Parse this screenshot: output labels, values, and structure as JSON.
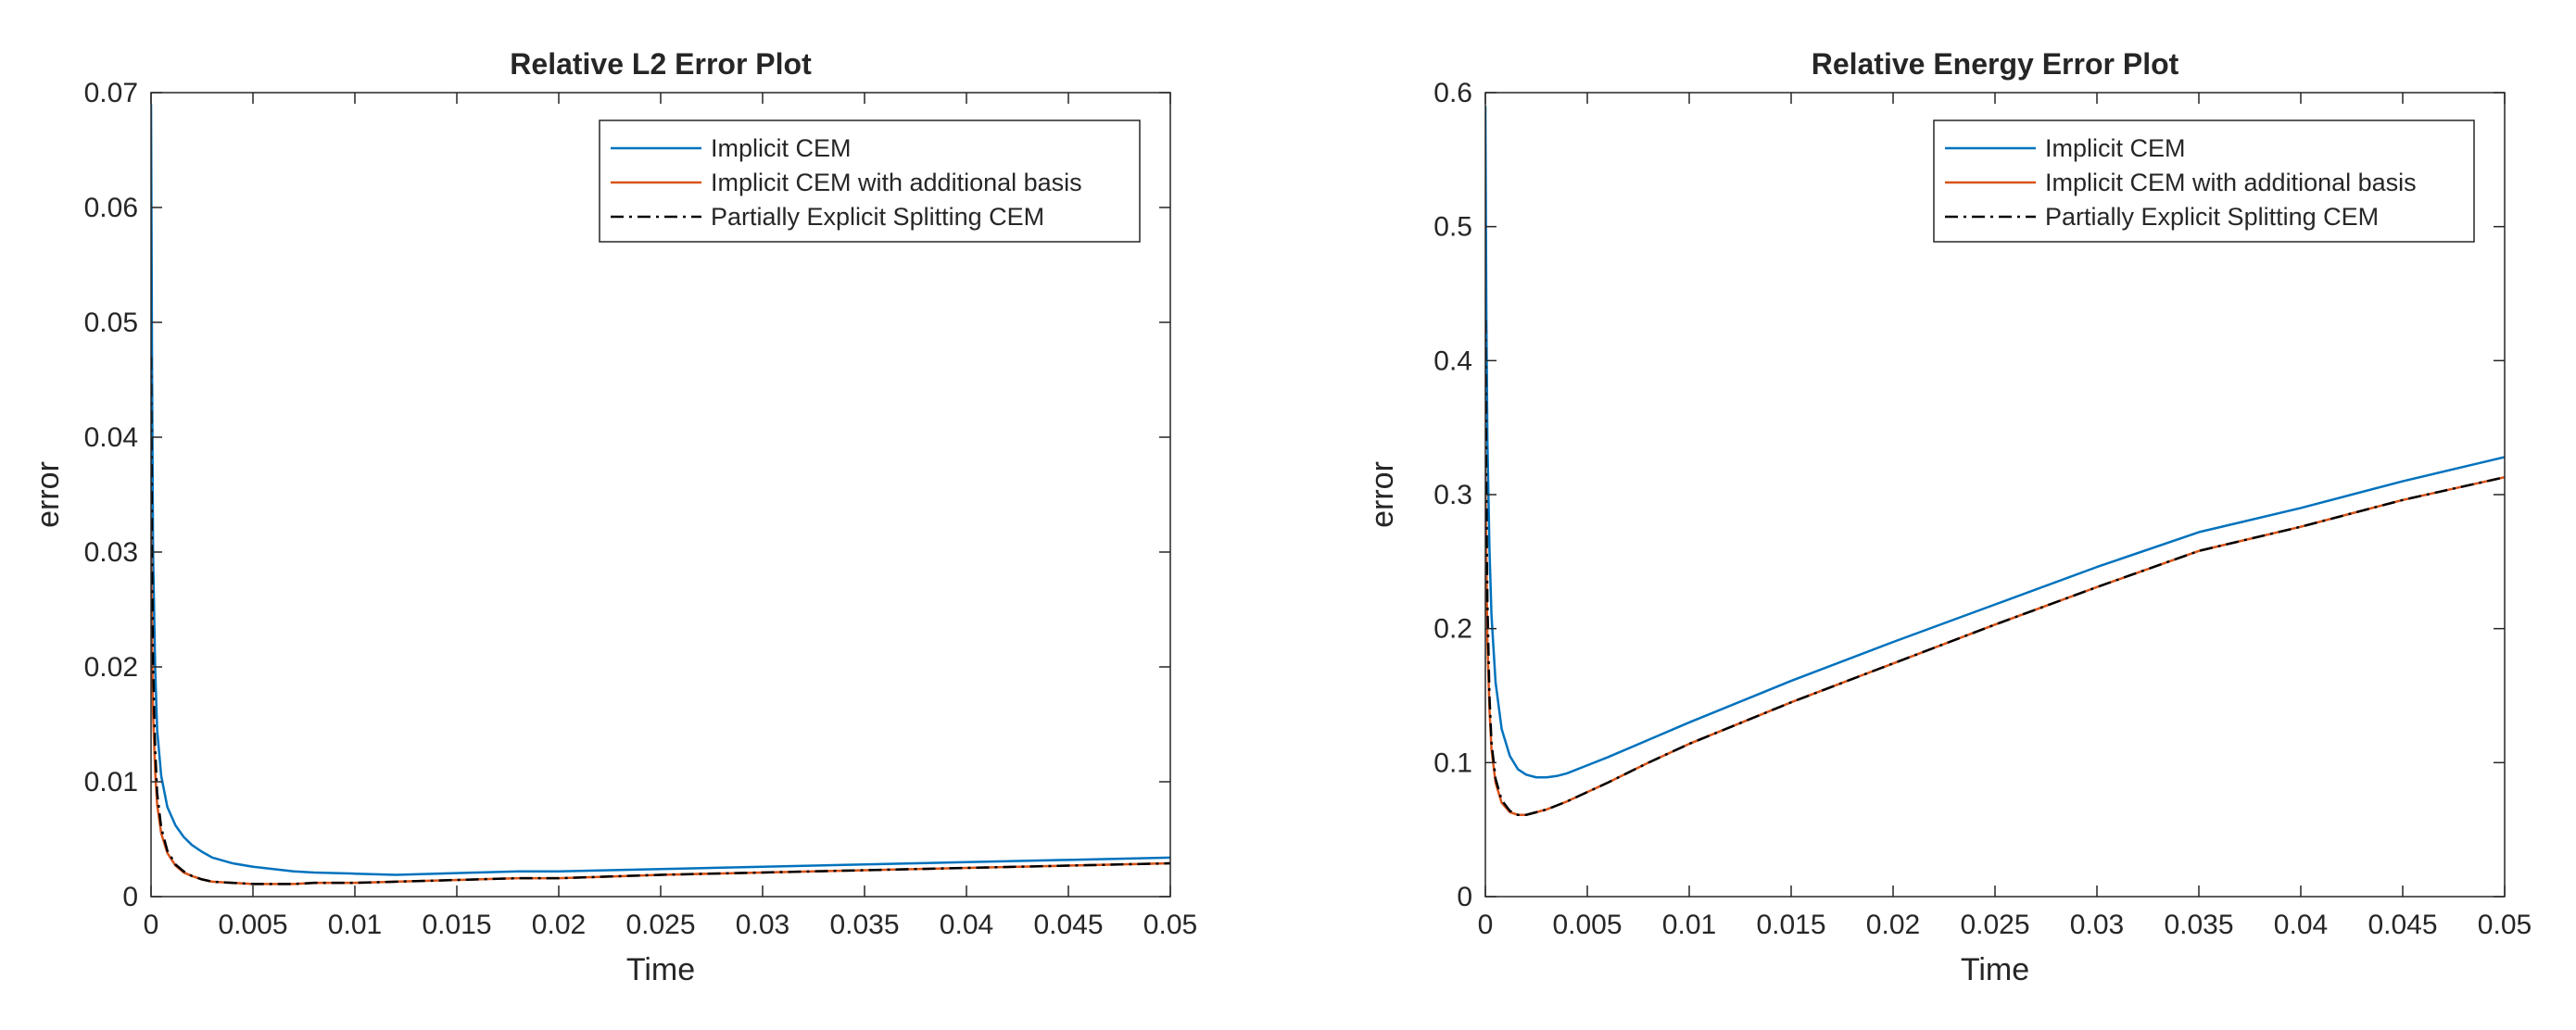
{
  "chart_data": [
    {
      "type": "line",
      "title": "Relative L2 Error Plot",
      "xlabel": "Time",
      "ylabel": "error",
      "xlim": [
        0,
        0.05
      ],
      "ylim": [
        0,
        0.07
      ],
      "xticks": [
        "0",
        "0.005",
        "0.01",
        "0.015",
        "0.02",
        "0.025",
        "0.03",
        "0.035",
        "0.04",
        "0.045",
        "0.05"
      ],
      "yticks": [
        "0",
        "0.01",
        "0.02",
        "0.03",
        "0.04",
        "0.05",
        "0.06",
        "0.07"
      ],
      "grid": false,
      "legend_position": "top-right",
      "series": [
        {
          "name": "Implicit CEM",
          "color": "#0072bd",
          "style": "solid",
          "x": [
            0,
            5e-05,
            0.0001,
            0.0002,
            0.0003,
            0.0005,
            0.0008,
            0.0012,
            0.0016,
            0.002,
            0.0025,
            0.003,
            0.004,
            0.005,
            0.006,
            0.007,
            0.008,
            0.01,
            0.012,
            0.014,
            0.016,
            0.018,
            0.02,
            0.025,
            0.03,
            0.035,
            0.04,
            0.045,
            0.05
          ],
          "y": [
            0.069,
            0.046,
            0.03,
            0.02,
            0.0145,
            0.0105,
            0.0078,
            0.0062,
            0.0052,
            0.0045,
            0.0039,
            0.0034,
            0.0029,
            0.0026,
            0.0024,
            0.0022,
            0.0021,
            0.002,
            0.0019,
            0.002,
            0.0021,
            0.0022,
            0.0022,
            0.0024,
            0.0026,
            0.0028,
            0.003,
            0.0032,
            0.0034
          ]
        },
        {
          "name": "Implicit CEM with additional basis",
          "color": "#d95319",
          "style": "solid",
          "x": [
            0,
            5e-05,
            0.0001,
            0.0002,
            0.0003,
            0.0005,
            0.0008,
            0.0012,
            0.0016,
            0.002,
            0.0025,
            0.003,
            0.004,
            0.005,
            0.006,
            0.007,
            0.008,
            0.01,
            0.012,
            0.014,
            0.016,
            0.018,
            0.02,
            0.025,
            0.03,
            0.035,
            0.04,
            0.045,
            0.05
          ],
          "y": [
            0.032,
            0.022,
            0.016,
            0.011,
            0.008,
            0.0055,
            0.0038,
            0.0027,
            0.0021,
            0.0018,
            0.0015,
            0.0013,
            0.0012,
            0.0011,
            0.0011,
            0.0011,
            0.0012,
            0.0012,
            0.0013,
            0.0014,
            0.0015,
            0.0016,
            0.0016,
            0.0019,
            0.0021,
            0.0023,
            0.0025,
            0.0027,
            0.0029
          ]
        },
        {
          "name": "Partially Explicit Splitting CEM",
          "color": "#000000",
          "style": "dashdot",
          "x": [
            0,
            5e-05,
            0.0001,
            0.0002,
            0.0003,
            0.0005,
            0.0008,
            0.0012,
            0.0016,
            0.002,
            0.0025,
            0.003,
            0.004,
            0.005,
            0.006,
            0.007,
            0.008,
            0.01,
            0.012,
            0.014,
            0.016,
            0.018,
            0.02,
            0.025,
            0.03,
            0.035,
            0.04,
            0.045,
            0.05
          ],
          "y": [
            0.047,
            0.03,
            0.02,
            0.013,
            0.009,
            0.006,
            0.004,
            0.0028,
            0.0022,
            0.0018,
            0.0015,
            0.0013,
            0.0012,
            0.0011,
            0.0011,
            0.0011,
            0.0012,
            0.0012,
            0.0013,
            0.0014,
            0.0015,
            0.0016,
            0.0016,
            0.0019,
            0.0021,
            0.0023,
            0.0025,
            0.0027,
            0.0029
          ]
        }
      ]
    },
    {
      "type": "line",
      "title": "Relative Energy Error Plot",
      "xlabel": "Time",
      "ylabel": "error",
      "xlim": [
        0,
        0.05
      ],
      "ylim": [
        0,
        0.6
      ],
      "xticks": [
        "0",
        "0.005",
        "0.01",
        "0.015",
        "0.02",
        "0.025",
        "0.03",
        "0.035",
        "0.04",
        "0.045",
        "0.05"
      ],
      "yticks": [
        "0",
        "0.1",
        "0.2",
        "0.3",
        "0.4",
        "0.5",
        "0.6"
      ],
      "grid": false,
      "legend_position": "top-right",
      "series": [
        {
          "name": "Implicit CEM",
          "color": "#0072bd",
          "style": "solid",
          "x": [
            0,
            5e-05,
            0.0001,
            0.0002,
            0.0003,
            0.0005,
            0.0008,
            0.0012,
            0.0016,
            0.002,
            0.0025,
            0.003,
            0.0035,
            0.004,
            0.005,
            0.006,
            0.008,
            0.01,
            0.015,
            0.02,
            0.025,
            0.03,
            0.035,
            0.04,
            0.045,
            0.05
          ],
          "y": [
            0.59,
            0.43,
            0.34,
            0.26,
            0.21,
            0.16,
            0.125,
            0.105,
            0.095,
            0.091,
            0.089,
            0.089,
            0.09,
            0.092,
            0.098,
            0.104,
            0.117,
            0.13,
            0.161,
            0.19,
            0.218,
            0.246,
            0.272,
            0.29,
            0.31,
            0.328
          ]
        },
        {
          "name": "Implicit CEM with additional basis",
          "color": "#d95319",
          "style": "solid",
          "x": [
            0,
            5e-05,
            0.0001,
            0.0002,
            0.0003,
            0.0005,
            0.0008,
            0.0012,
            0.0016,
            0.002,
            0.0025,
            0.003,
            0.0035,
            0.004,
            0.005,
            0.006,
            0.008,
            0.01,
            0.015,
            0.02,
            0.025,
            0.03,
            0.035,
            0.04,
            0.045,
            0.05
          ],
          "y": [
            0.32,
            0.25,
            0.19,
            0.14,
            0.11,
            0.085,
            0.07,
            0.063,
            0.061,
            0.061,
            0.063,
            0.065,
            0.068,
            0.071,
            0.078,
            0.085,
            0.1,
            0.114,
            0.145,
            0.174,
            0.203,
            0.231,
            0.258,
            0.276,
            0.296,
            0.313
          ]
        },
        {
          "name": "Partially Explicit Splitting CEM",
          "color": "#000000",
          "style": "dashdot",
          "x": [
            0,
            5e-05,
            0.0001,
            0.0002,
            0.0003,
            0.0005,
            0.0008,
            0.0012,
            0.0016,
            0.002,
            0.0025,
            0.003,
            0.0035,
            0.004,
            0.005,
            0.006,
            0.008,
            0.01,
            0.015,
            0.02,
            0.025,
            0.03,
            0.035,
            0.04,
            0.045,
            0.05
          ],
          "y": [
            0.43,
            0.3,
            0.22,
            0.15,
            0.115,
            0.088,
            0.072,
            0.064,
            0.061,
            0.061,
            0.063,
            0.065,
            0.068,
            0.071,
            0.078,
            0.085,
            0.1,
            0.114,
            0.145,
            0.174,
            0.203,
            0.231,
            0.258,
            0.276,
            0.296,
            0.313
          ]
        }
      ]
    }
  ]
}
